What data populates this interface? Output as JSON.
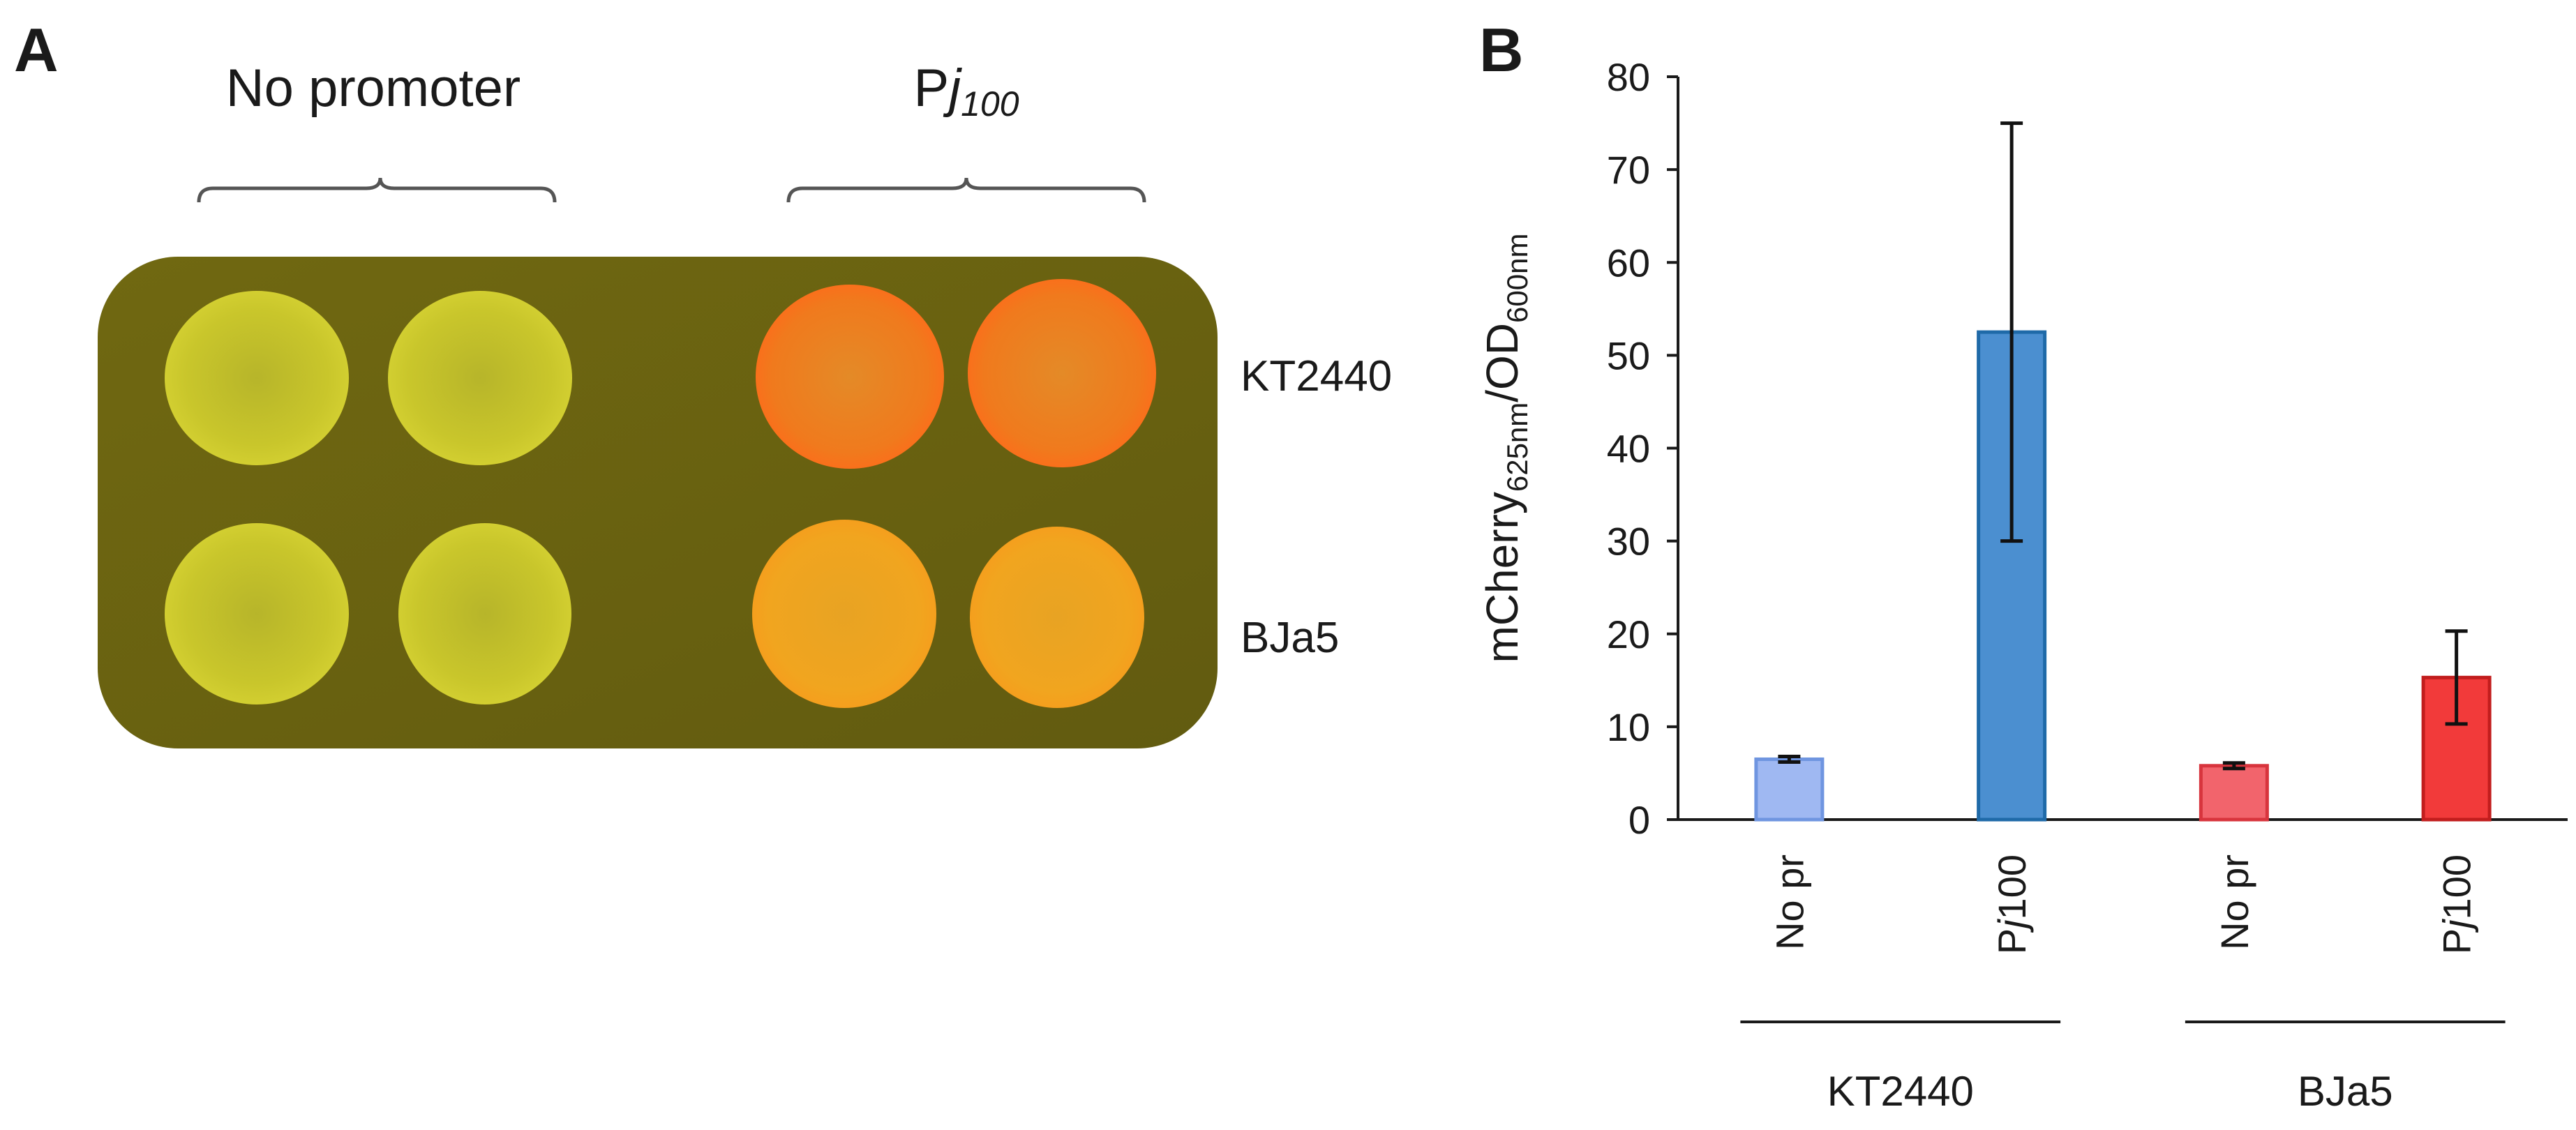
{
  "panel_a": {
    "letter": "A",
    "group_left_label": "No promoter",
    "group_right_label_main": "P",
    "group_right_label_italic": "j",
    "group_right_label_sub": "100",
    "row_labels": [
      "KT2440",
      "BJa5"
    ],
    "colors": {
      "plate": "#6b6312",
      "colony_yellow": "#c9c62a",
      "colony_orange_top": "#f0711c",
      "colony_orange_bottom": "#f0a41e"
    }
  },
  "chart_data": {
    "type": "bar",
    "panel_letter": "B",
    "categories": [
      "No pr",
      "Pj100",
      "No pr",
      "Pj100"
    ],
    "category_parts": [
      {
        "main": "No pr",
        "italic": "",
        "tail": ""
      },
      {
        "main": "P",
        "italic": "j",
        "tail": "100"
      },
      {
        "main": "No pr",
        "italic": "",
        "tail": ""
      },
      {
        "main": "P",
        "italic": "j",
        "tail": "100"
      }
    ],
    "values": [
      6.5,
      52.5,
      5.8,
      15.3
    ],
    "error": [
      0.3,
      22.5,
      0.3,
      5.0
    ],
    "groups": [
      {
        "label": "KT2440",
        "members": [
          0,
          1
        ]
      },
      {
        "label": "BJa5",
        "members": [
          2,
          3
        ]
      }
    ],
    "bar_fill": [
      "#9fb8f2",
      "#4b8fd0",
      "#f2646c",
      "#f23a3a"
    ],
    "bar_stroke": [
      "#6f95e0",
      "#1f6aa8",
      "#d8343d",
      "#c21d1d"
    ],
    "ylabel_main": "mCherry",
    "ylabel_sub1": "625nm",
    "ylabel_mid": "/OD",
    "ylabel_sub2": "600nm",
    "ylim": [
      0,
      80
    ],
    "yticks": [
      0,
      10,
      20,
      30,
      40,
      50,
      60,
      70,
      80
    ],
    "grid": false
  }
}
